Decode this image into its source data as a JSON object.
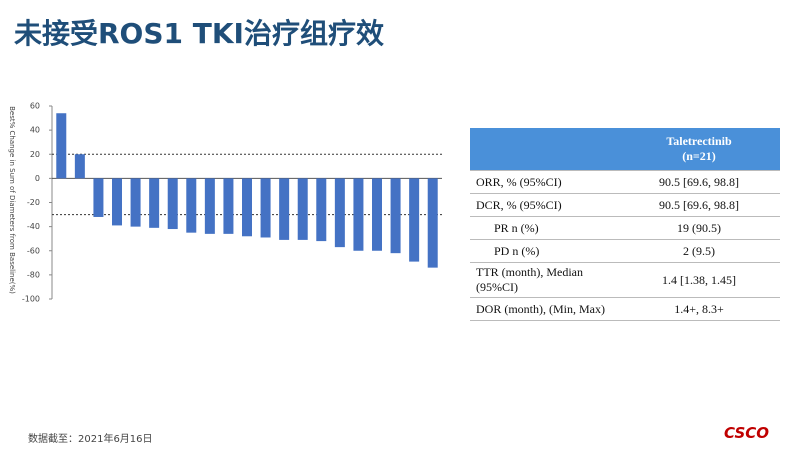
{
  "slide": {
    "title": "未接受ROS1 TKI治疗组疗效",
    "footnote": "数据截至：2021年6月16日",
    "logo": "CSCO"
  },
  "chart_data": {
    "type": "bar",
    "ylabel": "Best% Change in Sum of Diameters from Baseline(%)",
    "categories": [
      null,
      null,
      null,
      null,
      null,
      null,
      null,
      null,
      null,
      null,
      null,
      null,
      null,
      null,
      null,
      null,
      null,
      null,
      null,
      null,
      null
    ],
    "values": [
      54,
      20,
      -32,
      -39,
      -40,
      -41,
      -42,
      -45,
      -46,
      -46,
      -48,
      -49,
      -51,
      -51,
      -52,
      -57,
      -60,
      -60,
      -62,
      -69,
      -74
    ],
    "color": "#4472c4",
    "ylim": [
      -100,
      60
    ],
    "yticks": [
      -100,
      -80,
      -60,
      -40,
      -20,
      0,
      20,
      40,
      60
    ],
    "reference_lines": [
      20,
      -30
    ],
    "grid": false
  },
  "table": {
    "header": [
      "",
      "Taletrectinib",
      "(n=21)"
    ],
    "rows": [
      [
        "ORR, % (95%CI)",
        "90.5 [69.6, 98.8]"
      ],
      [
        "DCR, % (95%CI)",
        "90.5 [69.6, 98.8]"
      ],
      [
        "PR n (%)",
        "19 (90.5)"
      ],
      [
        "PD n (%)",
        "2 (9.5)"
      ],
      [
        "TTR (month), Median (95%CI)",
        "1.4 [1.38, 1.45]"
      ],
      [
        "DOR (month), (Min, Max)",
        "1.4+, 8.3+"
      ]
    ]
  }
}
